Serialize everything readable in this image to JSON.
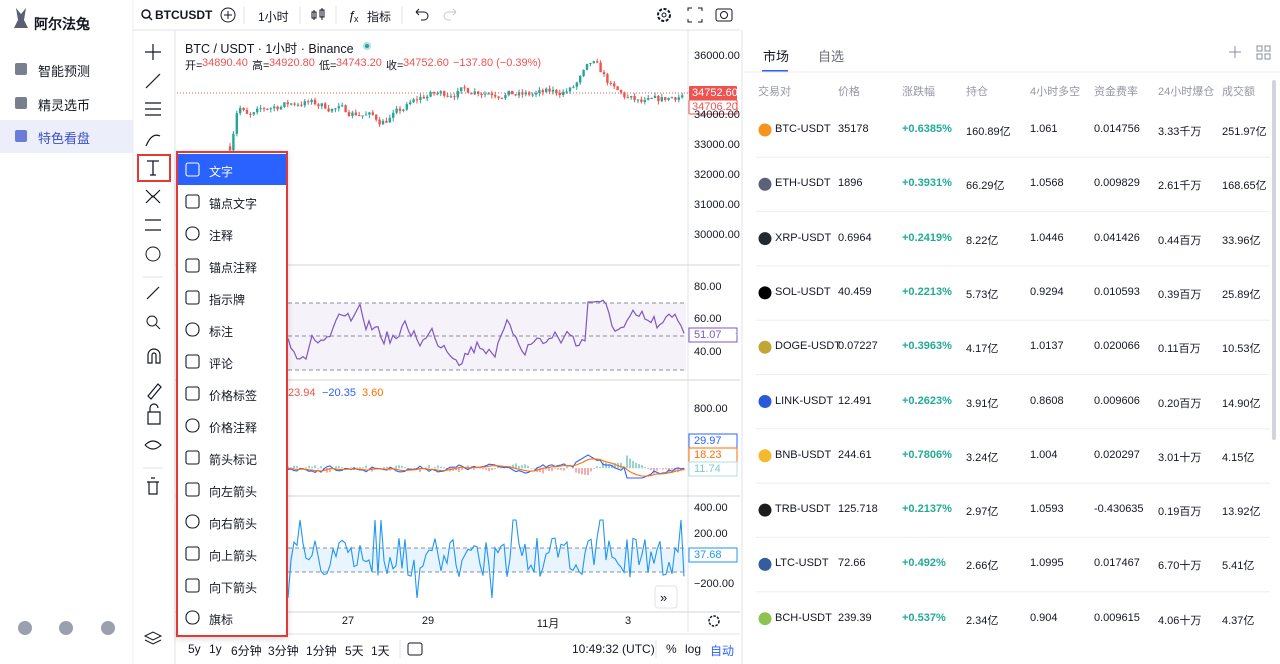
{
  "sidebar": {
    "brand": "阿尔法兔",
    "nav": [
      "智能预测",
      "精灵选币",
      "特色看盘"
    ]
  },
  "toolbar": {
    "symbol": "BTCUSDT",
    "interval": "1小时",
    "indicators": "指标"
  },
  "chart": {
    "title": "BTC / USDT · 1小时 · Binance",
    "ohlc": [
      {
        "label": "开=",
        "value": "34890.40"
      },
      {
        "label": "高=",
        "value": "34920.80"
      },
      {
        "label": "低=",
        "value": "34743.20"
      },
      {
        "label": "收=",
        "value": "34752.60"
      }
    ],
    "change": "−137.80 (−0.39%)",
    "price_axis": [
      "36000.00",
      "34000.00",
      "33000.00",
      "32000.00",
      "31000.00",
      "30000.00"
    ],
    "price_tags": [
      "34752.60",
      "34706.20"
    ],
    "rsi_axis": [
      "80.00",
      "60.00",
      "40.00"
    ],
    "rsi_tag": "51.07",
    "macd_values": [
      "23.94",
      "−20.35",
      "3.60"
    ],
    "macd_axis": [
      "800.00"
    ],
    "macd_tags": [
      "29.97",
      "18.23",
      "11.74"
    ],
    "cci_axis": [
      "400.00",
      "200.00",
      "−200.00"
    ],
    "cci_tag": "37.68",
    "time_axis": [
      "27",
      "29",
      "11月",
      "3"
    ]
  },
  "tool_menu": [
    "文字",
    "锚点文字",
    "注释",
    "锚点注释",
    "指示牌",
    "标注",
    "评论",
    "价格标签",
    "价格注释",
    "箭头标记",
    "向左箭头",
    "向右箭头",
    "向上箭头",
    "向下箭头",
    "旗标"
  ],
  "bottom_bar": {
    "ranges": [
      "5y",
      "1y",
      "6分钟",
      "3分钟",
      "1分钟",
      "5天",
      "1天"
    ],
    "time": "10:49:32 (UTC)",
    "options": [
      "%",
      "log",
      "自动"
    ]
  },
  "market": {
    "tabs": [
      "市场",
      "自选"
    ],
    "columns": [
      "交易对",
      "价格",
      "涨跌幅",
      "持仓",
      "4小时多空",
      "资金费率",
      "24小时爆仓",
      "成交额"
    ],
    "rows": [
      [
        "BTC-USDT",
        "35178",
        "+0.6385%",
        "160.89亿",
        "1.061",
        "0.014756",
        "3.33千万",
        "251.97亿"
      ],
      [
        "ETH-USDT",
        "1896",
        "+0.3931%",
        "66.29亿",
        "1.0568",
        "0.009829",
        "2.61千万",
        "168.65亿"
      ],
      [
        "XRP-USDT",
        "0.6964",
        "+0.2419%",
        "8.22亿",
        "1.0446",
        "0.041426",
        "0.44百万",
        "33.96亿"
      ],
      [
        "SOL-USDT",
        "40.459",
        "+0.2213%",
        "5.73亿",
        "0.9294",
        "0.010593",
        "0.39百万",
        "25.89亿"
      ],
      [
        "DOGE-USDT",
        "0.07227",
        "+0.3963%",
        "4.17亿",
        "1.0137",
        "0.020066",
        "0.11百万",
        "10.53亿"
      ],
      [
        "LINK-USDT",
        "12.491",
        "+0.2623%",
        "3.91亿",
        "0.8608",
        "0.009606",
        "0.20百万",
        "14.90亿"
      ],
      [
        "BNB-USDT",
        "244.61",
        "+0.7806%",
        "3.24亿",
        "1.004",
        "0.020297",
        "3.01十万",
        "4.15亿"
      ],
      [
        "TRB-USDT",
        "125.718",
        "+0.2137%",
        "2.97亿",
        "1.0593",
        "-0.430635",
        "0.19百万",
        "13.92亿"
      ],
      [
        "LTC-USDT",
        "72.66",
        "+0.492%",
        "2.66亿",
        "1.0995",
        "0.017467",
        "6.70十万",
        "5.41亿"
      ],
      [
        "BCH-USDT",
        "239.39",
        "+0.537%",
        "2.34亿",
        "0.904",
        "0.009615",
        "4.06十万",
        "4.37亿"
      ]
    ]
  }
}
